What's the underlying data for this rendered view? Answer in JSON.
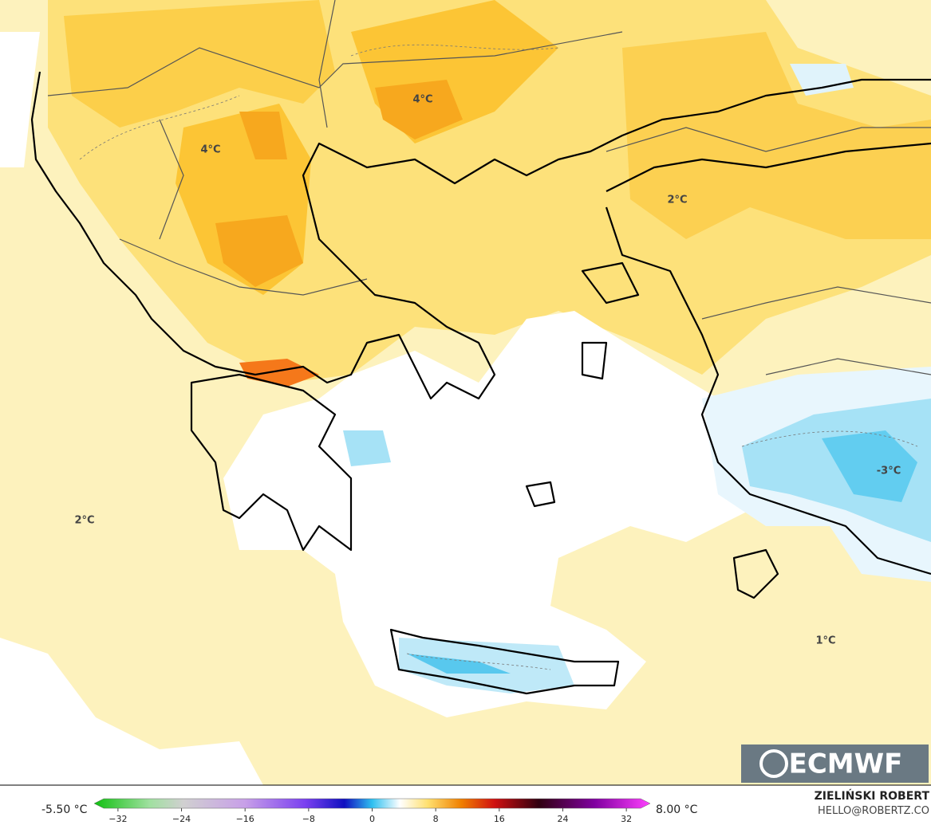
{
  "map": {
    "labels": [
      {
        "text": "4°C"
      },
      {
        "text": "4°C"
      },
      {
        "text": "2°C"
      },
      {
        "text": "2°C"
      },
      {
        "text": "-3°C"
      },
      {
        "text": "1°C"
      }
    ],
    "logo": "ECMWF",
    "author": "ZIELIŃSKI ROBERT",
    "contact": "HELLO@ROBERTZ.CO"
  },
  "colorbar": {
    "min_label": "-5.50 °C",
    "max_label": "8.00 °C",
    "lim": [
      -35,
      35
    ],
    "ticks": [
      {
        "value": -32,
        "label": "−32"
      },
      {
        "value": -24,
        "label": "−24"
      },
      {
        "value": -16,
        "label": "−16"
      },
      {
        "value": -8,
        "label": "−8"
      },
      0,
      8,
      16,
      24,
      32
    ]
  }
}
